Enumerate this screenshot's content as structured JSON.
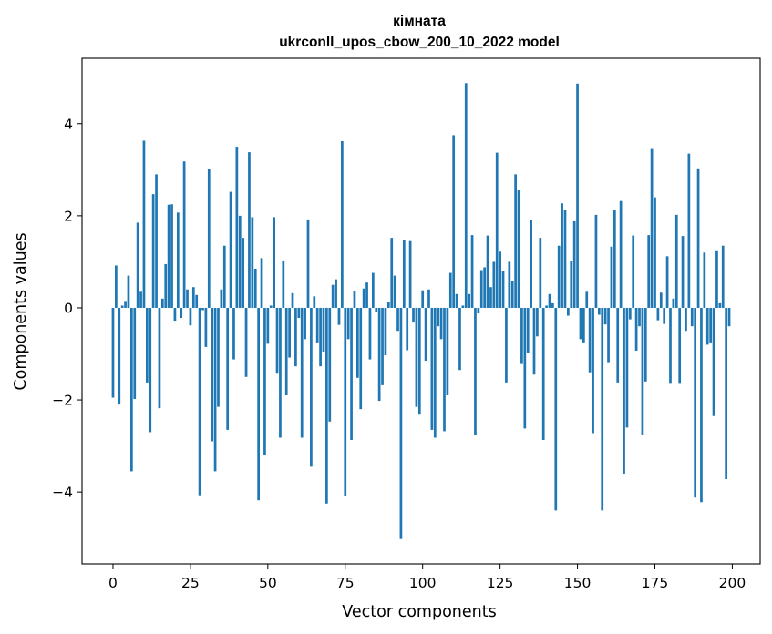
{
  "chart_data": {
    "type": "bar",
    "title": "кімната",
    "subtitle": "ukrconll_upos_cbow_200_10_2022 model",
    "xlabel": "Vector components",
    "ylabel": "Components values",
    "xlim": [
      -10,
      209
    ],
    "ylim": [
      -5.56,
      5.42
    ],
    "x_ticks": [
      0,
      25,
      50,
      75,
      100,
      125,
      150,
      175,
      200
    ],
    "y_ticks": [
      -4,
      -2,
      0,
      2,
      4
    ],
    "x_tick_labels": [
      "0",
      "25",
      "50",
      "75",
      "100",
      "125",
      "150",
      "175",
      "200"
    ],
    "y_tick_labels": [
      "−4",
      "−2",
      "0",
      "2",
      "4"
    ],
    "bar_color": "#1f77b4",
    "values": [
      -1.95,
      0.92,
      -2.1,
      0.05,
      0.15,
      0.7,
      -3.55,
      -1.98,
      1.85,
      0.35,
      3.63,
      -1.62,
      -2.7,
      2.47,
      2.9,
      -2.18,
      0.2,
      0.95,
      2.24,
      2.25,
      -0.28,
      2.07,
      -0.22,
      3.18,
      0.4,
      -0.38,
      0.45,
      0.28,
      -4.07,
      -0.05,
      -0.85,
      3.01,
      -2.9,
      -3.55,
      -2.15,
      0.4,
      1.35,
      -2.65,
      2.52,
      -1.12,
      3.5,
      2.0,
      1.52,
      -1.5,
      3.38,
      1.97,
      0.85,
      -4.18,
      1.08,
      -3.2,
      -0.78,
      0.05,
      1.97,
      -1.43,
      -2.82,
      1.03,
      -1.9,
      -1.08,
      0.32,
      -1.27,
      -0.22,
      -2.82,
      -0.68,
      1.92,
      -3.45,
      0.25,
      -0.75,
      -1.27,
      -0.95,
      -4.25,
      -2.47,
      0.5,
      0.62,
      -0.37,
      3.62,
      -4.08,
      -0.68,
      -2.87,
      0.36,
      -1.52,
      -2.2,
      0.42,
      0.55,
      -1.12,
      0.76,
      -0.1,
      -2.02,
      -1.68,
      -1.03,
      0.12,
      1.52,
      0.7,
      -0.5,
      -5.02,
      1.48,
      -0.92,
      1.45,
      -0.32,
      -2.15,
      -2.32,
      0.38,
      -1.15,
      0.4,
      -2.65,
      -2.82,
      -0.4,
      -0.68,
      -2.68,
      -1.9,
      0.76,
      3.75,
      0.3,
      -1.35,
      0.05,
      4.88,
      0.3,
      1.58,
      -2.77,
      -0.12,
      0.82,
      0.88,
      1.57,
      0.45,
      1.0,
      3.37,
      1.22,
      0.8,
      -1.62,
      1.0,
      0.58,
      2.9,
      2.55,
      -1.22,
      -2.62,
      -0.97,
      1.9,
      -1.45,
      -0.62,
      1.52,
      -2.87,
      0.05,
      0.3,
      0.1,
      -4.4,
      1.35,
      2.27,
      2.12,
      -0.17,
      1.02,
      1.88,
      4.87,
      -0.68,
      -0.75,
      0.35,
      -1.4,
      -2.72,
      2.02,
      -0.15,
      -4.4,
      -0.36,
      -1.18,
      1.33,
      2.12,
      -1.62,
      2.32,
      -3.6,
      -2.6,
      -0.25,
      1.57,
      -0.93,
      -0.4,
      -2.75,
      -1.6,
      1.58,
      3.45,
      2.4,
      -0.27,
      0.33,
      -0.35,
      1.12,
      -1.65,
      0.2,
      2.02,
      -1.65,
      1.56,
      -0.5,
      3.35,
      -0.4,
      -4.12,
      3.03,
      -4.22,
      1.2,
      -0.8,
      -0.75,
      -2.35,
      1.25,
      0.1,
      1.35,
      -3.72,
      -0.4
    ]
  }
}
